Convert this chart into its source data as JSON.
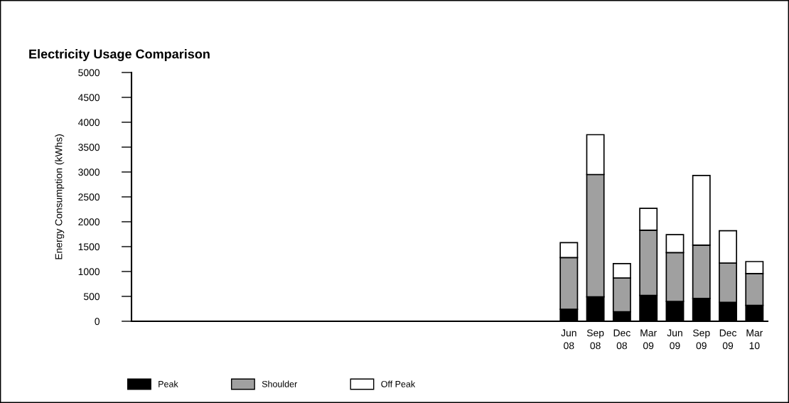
{
  "chart_data": {
    "type": "bar",
    "title": "Electricity Usage Comparison",
    "ylabel": "Energy Consumption (kWhs)",
    "categories": [
      null,
      null,
      null,
      null,
      null,
      null,
      null,
      null,
      null,
      null,
      null,
      null,
      null,
      null,
      null,
      null,
      "Jun\n08",
      "Sep\n08",
      "Dec\n08",
      "Mar\n09",
      "Jun\n09",
      "Sep\n09",
      "Dec\n09",
      "Mar\n10"
    ],
    "stacked": true,
    "series": [
      {
        "name": "Peak",
        "color": "#000000",
        "values": [
          null,
          null,
          null,
          null,
          null,
          null,
          null,
          null,
          null,
          null,
          null,
          null,
          null,
          null,
          null,
          null,
          240,
          490,
          190,
          520,
          400,
          460,
          380,
          320
        ]
      },
      {
        "name": "Shoulder",
        "color": "#a0a0a0",
        "values": [
          null,
          null,
          null,
          null,
          null,
          null,
          null,
          null,
          null,
          null,
          null,
          null,
          null,
          null,
          null,
          null,
          1040,
          2460,
          680,
          1310,
          980,
          1070,
          790,
          640
        ]
      },
      {
        "name": "Off Peak",
        "color": "#ffffff",
        "values": [
          null,
          null,
          null,
          null,
          null,
          null,
          null,
          null,
          null,
          null,
          null,
          null,
          null,
          null,
          null,
          null,
          300,
          800,
          290,
          440,
          360,
          1400,
          650,
          240
        ]
      }
    ],
    "ylim": [
      0,
      5000
    ],
    "yticks": [
      0,
      500,
      1000,
      1500,
      2000,
      2500,
      3000,
      3500,
      4000,
      4500,
      5000
    ],
    "grid": false,
    "legend": "bottom"
  }
}
